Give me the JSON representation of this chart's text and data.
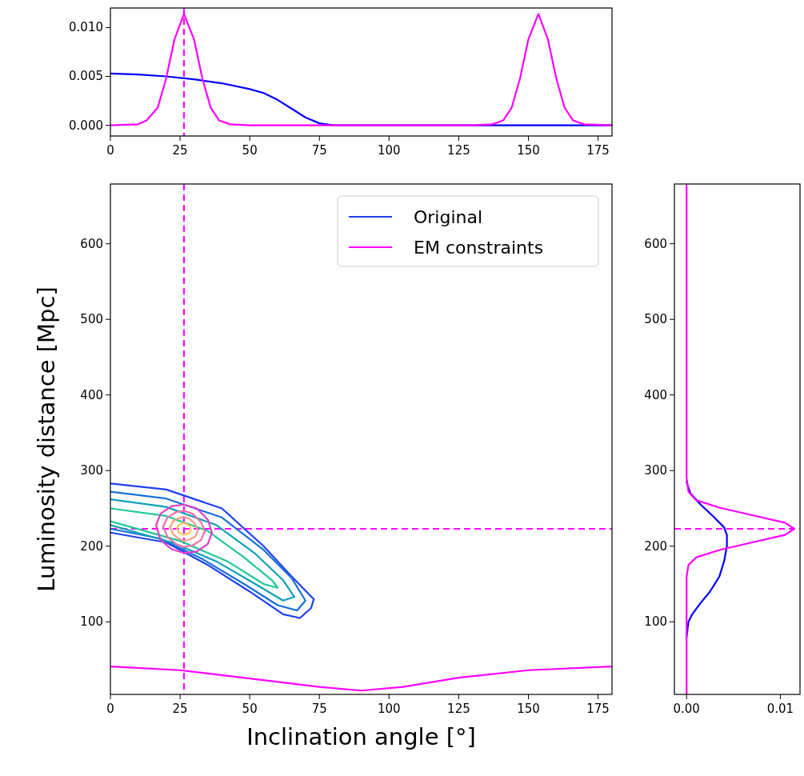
{
  "chart_data": [
    {
      "type": "line",
      "xlim": [
        0,
        180
      ],
      "xticks": [
        0,
        25,
        50,
        75,
        100,
        125,
        150,
        175
      ],
      "ylim": [
        -0.0011,
        0.012
      ],
      "yticks": [
        {
          "value": 0,
          "label": "0.000"
        },
        {
          "value": 0.005,
          "label": "0.005"
        },
        {
          "value": 0.01,
          "label": "0.010"
        }
      ],
      "series": [
        {
          "color": "#0000ff",
          "x": [
            0,
            10,
            20,
            30,
            40,
            50,
            55,
            60,
            65,
            70,
            75,
            80,
            100,
            150,
            180
          ],
          "values": [
            0.0053,
            0.0052,
            0.005,
            0.0047,
            0.0043,
            0.0037,
            0.0033,
            0.0026,
            0.0017,
            0.0008,
            0.0002,
            0,
            0,
            0,
            0
          ]
        },
        {
          "color": "#ff00ff",
          "x": [
            0,
            10,
            13,
            17,
            20,
            23,
            26.4,
            30,
            33,
            36,
            39,
            43,
            50,
            130,
            137,
            141,
            144,
            147,
            150,
            153.6,
            157,
            160,
            163,
            166,
            170,
            180
          ],
          "values": [
            0,
            0.0001,
            0.0005,
            0.0018,
            0.0048,
            0.0088,
            0.0114,
            0.0088,
            0.0048,
            0.0018,
            0.0005,
            0.0001,
            0,
            0,
            0.0001,
            0.0005,
            0.0018,
            0.0048,
            0.0088,
            0.0114,
            0.0088,
            0.0048,
            0.0018,
            0.0005,
            0.0001,
            0
          ]
        }
      ],
      "ref_lines": [
        {
          "axis": "x",
          "value": 26.4,
          "color": "#ff00ff",
          "line_style": "dashed"
        }
      ]
    },
    {
      "type": "line",
      "xlabel": "Inclination angle [°]",
      "ylabel": "Luminosity distance [Mpc]",
      "xlim": [
        0,
        180
      ],
      "xticks": [
        0,
        25,
        50,
        75,
        100,
        125,
        150,
        175
      ],
      "ylim": [
        4,
        679
      ],
      "yticks": [
        100,
        200,
        300,
        400,
        500,
        600
      ],
      "legend": "top right",
      "series": [
        {
          "name": "Original",
          "color": "#2040f0",
          "x": [
            0,
            20,
            40,
            55,
            65,
            73,
            72,
            68,
            62,
            50,
            35,
            20,
            0
          ],
          "values": [
            283,
            275,
            250,
            200,
            160,
            130,
            118,
            105,
            110,
            140,
            175,
            205,
            218
          ]
        },
        {
          "color": "#1870d8",
          "x": [
            0,
            20,
            40,
            55,
            65,
            70,
            67,
            60,
            48,
            33,
            18,
            0
          ],
          "values": [
            272,
            263,
            238,
            195,
            158,
            128,
            115,
            122,
            150,
            183,
            210,
            223
          ]
        },
        {
          "color": "#10a0b8",
          "x": [
            0,
            20,
            38,
            52,
            62,
            66,
            62,
            52,
            38,
            22,
            0
          ],
          "values": [
            262,
            252,
            228,
            190,
            155,
            133,
            128,
            150,
            180,
            205,
            228
          ]
        },
        {
          "color": "#20c898",
          "x": [
            0,
            20,
            35,
            48,
            58,
            60,
            55,
            42,
            25,
            0
          ],
          "values": [
            250,
            240,
            220,
            185,
            155,
            145,
            150,
            180,
            207,
            233
          ]
        },
        {
          "color": "#e040c8",
          "x": [
            16.4,
            18,
            22,
            26.4,
            31,
            35,
            36.4
          ],
          "values": [
            228,
            243,
            253,
            255,
            250,
            235,
            218
          ]
        },
        {
          "color": "#e040c8",
          "x": [
            16.4,
            18,
            22,
            26.4,
            31,
            35,
            36.4
          ],
          "values": [
            228,
            208,
            196,
            191,
            193,
            203,
            218
          ]
        },
        {
          "color": "#f070a8",
          "x": [
            18.9,
            20.5,
            23.5,
            26.4,
            29.5,
            32.5,
            33.9
          ],
          "values": [
            226,
            238,
            245,
            247,
            243,
            232,
            220
          ]
        },
        {
          "color": "#f070a8",
          "x": [
            18.9,
            20.5,
            23.5,
            26.4,
            29.5,
            32.5,
            33.9
          ],
          "values": [
            226,
            212,
            203,
            199,
            201,
            208,
            220
          ]
        },
        {
          "color": "#f8a080",
          "x": [
            21.4,
            22.5,
            24.5,
            26.4,
            28.5,
            30.5,
            31.4
          ],
          "values": [
            225,
            233,
            237,
            239,
            236,
            229,
            221
          ]
        },
        {
          "color": "#f8a080",
          "x": [
            21.4,
            22.5,
            24.5,
            26.4,
            28.5,
            30.5,
            31.4
          ],
          "values": [
            225,
            216,
            210,
            207,
            209,
            213,
            221
          ]
        },
        {
          "color": "#f8c860",
          "x": [
            23.9,
            24.5,
            26.4,
            28.5,
            28.9
          ],
          "values": [
            224,
            228,
            231,
            227,
            222
          ]
        },
        {
          "color": "#f8c860",
          "x": [
            23.9,
            24.5,
            26.4,
            28.3,
            28.9
          ],
          "values": [
            224,
            218,
            215,
            217,
            222
          ]
        },
        {
          "name": "EM constraints",
          "color": "#ff00ff",
          "x": [
            0,
            25,
            50,
            75,
            90,
            105,
            125,
            150,
            180
          ],
          "values": [
            41,
            36,
            25,
            14,
            9,
            14,
            26,
            36,
            41
          ]
        }
      ],
      "ref_lines": [
        {
          "axis": "x",
          "value": 26.4,
          "color": "#ff00ff",
          "line_style": "dashed"
        },
        {
          "axis": "y",
          "value": 223,
          "color": "#ff00ff",
          "line_style": "dashed"
        }
      ]
    },
    {
      "type": "line",
      "xlim": [
        -0.0013,
        0.0121
      ],
      "xticks": [
        {
          "value": 0,
          "label": "0.00"
        },
        {
          "value": 0.01,
          "label": "0.01"
        }
      ],
      "ylim": [
        4,
        679
      ],
      "yticks": [
        100,
        200,
        300,
        400,
        500,
        600
      ],
      "series": [
        {
          "color": "#0000ff",
          "x": [
            0,
            0.0002,
            0.0006,
            0.0015,
            0.0025,
            0.0035,
            0.004,
            0.0043,
            0.0043,
            0.004,
            0.0028,
            0.0015,
            0.0004,
            0
          ],
          "values": [
            80,
            100,
            110,
            125,
            140,
            160,
            180,
            200,
            215,
            225,
            240,
            255,
            270,
            285
          ]
        },
        {
          "color": "#ff00ff",
          "x": [
            0,
            0,
            0.0002,
            0.001,
            0.0035,
            0.007,
            0.0105,
            0.0115,
            0.0105,
            0.007,
            0.0035,
            0.001,
            0.0002,
            0,
            0
          ],
          "values": [
            4,
            160,
            175,
            185,
            195,
            205,
            215,
            223,
            231,
            241,
            251,
            261,
            272,
            290,
            679
          ]
        }
      ],
      "ref_lines": [
        {
          "axis": "y",
          "value": 223,
          "color": "#ff00ff",
          "line_style": "dashed"
        }
      ]
    }
  ]
}
